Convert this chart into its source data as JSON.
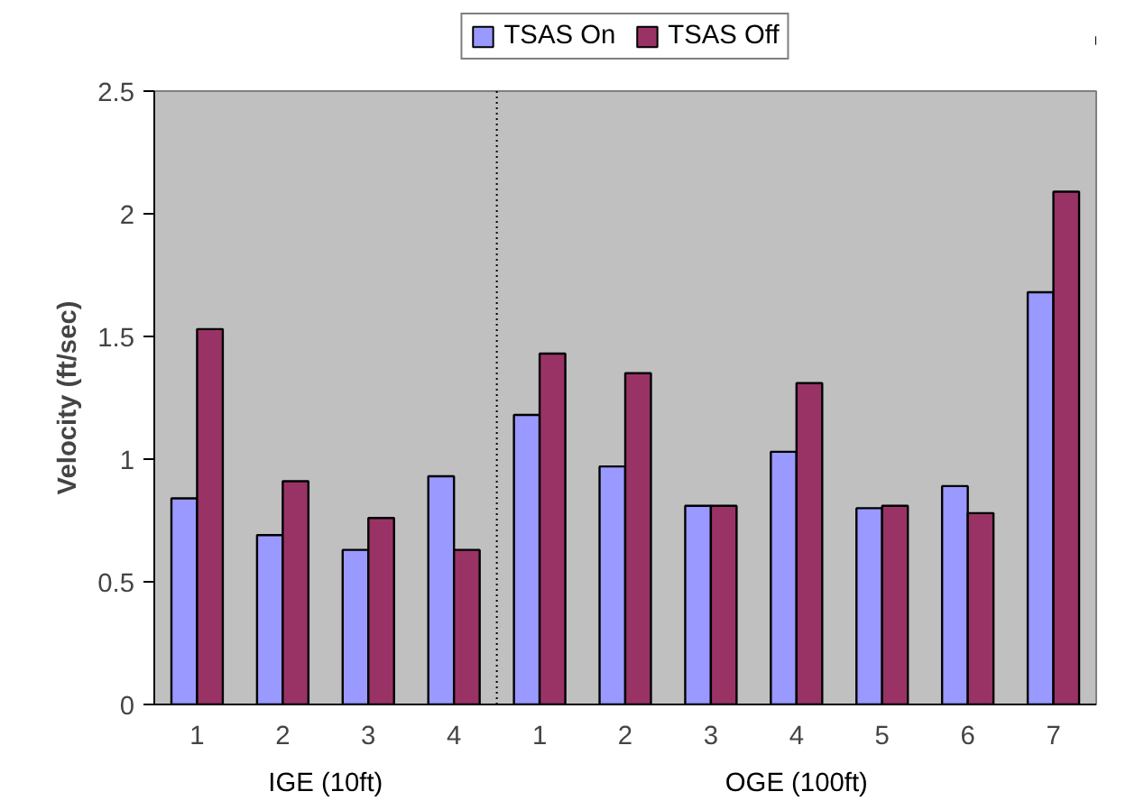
{
  "chart_data": {
    "type": "bar",
    "ylabel": "Velocity (ft/sec)",
    "categories": [
      "1",
      "2",
      "3",
      "4",
      "1",
      "2",
      "3",
      "4",
      "5",
      "6",
      "7"
    ],
    "series": [
      {
        "name": "TSAS On",
        "color": "#9999ff",
        "values": [
          0.84,
          0.69,
          0.63,
          0.93,
          1.18,
          0.97,
          0.81,
          1.03,
          0.8,
          0.89,
          1.68
        ]
      },
      {
        "name": "TSAS Off",
        "color": "#993366",
        "values": [
          1.53,
          0.91,
          0.76,
          0.63,
          1.43,
          1.35,
          0.81,
          1.31,
          0.81,
          0.78,
          2.09
        ]
      }
    ],
    "ylim": [
      0,
      2.5
    ],
    "yticks": [
      0,
      0.5,
      1,
      1.5,
      2,
      2.5
    ],
    "grid": false,
    "legend": "top",
    "annotations": [
      "IGE (10ft)",
      "OGE (100ft)"
    ]
  }
}
